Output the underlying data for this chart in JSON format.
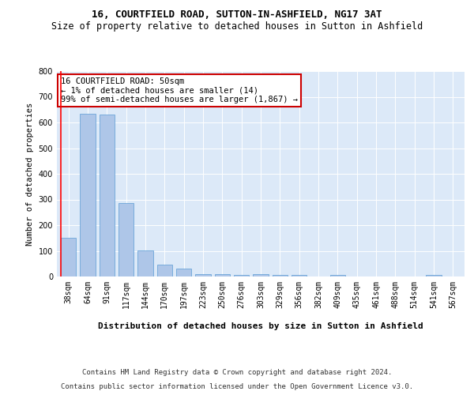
{
  "title": "16, COURTFIELD ROAD, SUTTON-IN-ASHFIELD, NG17 3AT",
  "subtitle": "Size of property relative to detached houses in Sutton in Ashfield",
  "xlabel": "Distribution of detached houses by size in Sutton in Ashfield",
  "ylabel": "Number of detached properties",
  "categories": [
    "38sqm",
    "64sqm",
    "91sqm",
    "117sqm",
    "144sqm",
    "170sqm",
    "197sqm",
    "223sqm",
    "250sqm",
    "276sqm",
    "303sqm",
    "329sqm",
    "356sqm",
    "382sqm",
    "409sqm",
    "435sqm",
    "461sqm",
    "488sqm",
    "514sqm",
    "541sqm",
    "567sqm"
  ],
  "values": [
    150,
    635,
    630,
    285,
    102,
    47,
    30,
    10,
    10,
    5,
    8,
    5,
    5,
    0,
    5,
    0,
    0,
    0,
    0,
    5,
    0
  ],
  "bar_color": "#aec6e8",
  "bar_edge_color": "#5b9bd5",
  "annotation_box_color": "#ffffff",
  "annotation_border_color": "#cc0000",
  "annotation_text": [
    "16 COURTFIELD ROAD: 50sqm",
    "← 1% of detached houses are smaller (14)",
    "99% of semi-detached houses are larger (1,867) →"
  ],
  "ylim": [
    0,
    800
  ],
  "yticks": [
    0,
    100,
    200,
    300,
    400,
    500,
    600,
    700,
    800
  ],
  "background_color": "#dce9f8",
  "footer": [
    "Contains HM Land Registry data © Crown copyright and database right 2024.",
    "Contains public sector information licensed under the Open Government Licence v3.0."
  ],
  "title_fontsize": 9,
  "subtitle_fontsize": 8.5,
  "axis_label_fontsize": 8,
  "tick_fontsize": 7,
  "footer_fontsize": 6.5,
  "ylabel_fontsize": 7.5,
  "annotation_fontsize": 7.5
}
